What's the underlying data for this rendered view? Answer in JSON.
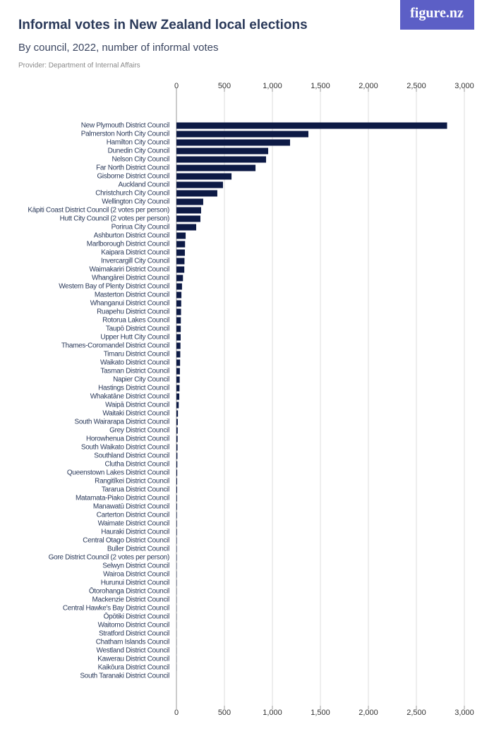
{
  "chart_data": {
    "type": "bar",
    "orientation": "horizontal",
    "title": "Informal votes in New Zealand local elections",
    "subtitle": "By council, 2022, number of informal votes",
    "source": "Provider: Department of Internal Affairs",
    "logo": "figure.nz",
    "color": "#0d1a45",
    "grid": true,
    "xlim": [
      0,
      3000
    ],
    "xticks": [
      0,
      500,
      {
        "value": 1000,
        "label": "1,000"
      },
      {
        "value": 1500,
        "label": "1,500"
      },
      {
        "value": 2000,
        "label": "2,000"
      },
      {
        "value": 2500,
        "label": "2,500"
      },
      {
        "value": 3000,
        "label": "3,000"
      }
    ],
    "categories": [
      "New Plymouth District Council",
      "Palmerston North City Council",
      "Hamilton City Council",
      "Dunedin City Council",
      "Nelson City Council",
      "Far North District Council",
      "Gisborne District Council",
      "Auckland Council",
      "Christchurch City Council",
      "Wellington City Council",
      "Kāpiti Coast District Council (2 votes per person)",
      "Hutt City Council (2 votes per person)",
      "Porirua City Council",
      "Ashburton District Council",
      "Marlborough District Council",
      "Kaipara District Council",
      "Invercargill City Council",
      "Waimakariri District Council",
      "Whangārei District Council",
      "Western Bay of Plenty District Council",
      "Masterton District Council",
      "Whanganui District Council",
      "Ruapehu District Council",
      "Rotorua Lakes Council",
      "Taupō District Council",
      "Upper Hutt City Council",
      "Thames-Coromandel District Council",
      "Timaru District Council",
      "Waikato District Council",
      "Tasman District Council",
      "Napier City Council",
      "Hastings District Council",
      "Whakatāne District Council",
      "Waipā District Council",
      "Waitaki District Council",
      "South Wairarapa District Council",
      "Grey District Council",
      "Horowhenua District Council",
      "South Waikato District Council",
      "Southland District Council",
      "Clutha District Council",
      "Queenstown Lakes District Council",
      "Rangitīkei District Council",
      "Tararua District Council",
      "Matamata-Piako District Council",
      "Manawatū District Council",
      "Carterton District Council",
      "Waimate District Council",
      "Hauraki District Council",
      "Central Otago District Council",
      "Buller District Council",
      "Gore District Council (2 votes per person)",
      "Selwyn District Council",
      "Wairoa District Council",
      "Hurunui District Council",
      "Ōtorohanga District Council",
      "Mackenzie District Council",
      "Central Hawke's Bay District Council",
      "Ōpōtiki District Council",
      "Waitomo District Council",
      "Stratford District Council",
      "Chatham Islands Council",
      "Westland District Council",
      "Kawerau District Council",
      "Kaikōura District Council",
      "South Taranaki District Council"
    ],
    "values": [
      2820,
      1375,
      1184,
      956,
      934,
      824,
      574,
      485,
      426,
      279,
      257,
      250,
      206,
      96,
      90,
      88,
      84,
      82,
      68,
      58,
      52,
      50,
      48,
      46,
      45,
      44,
      42,
      40,
      38,
      36,
      34,
      32,
      30,
      24,
      16,
      14,
      13,
      12,
      11,
      10,
      9,
      8,
      7,
      7,
      6,
      6,
      5,
      5,
      5,
      4,
      4,
      4,
      3,
      3,
      3,
      2,
      2,
      2,
      2,
      1,
      1,
      1,
      1,
      1,
      1,
      0
    ]
  }
}
